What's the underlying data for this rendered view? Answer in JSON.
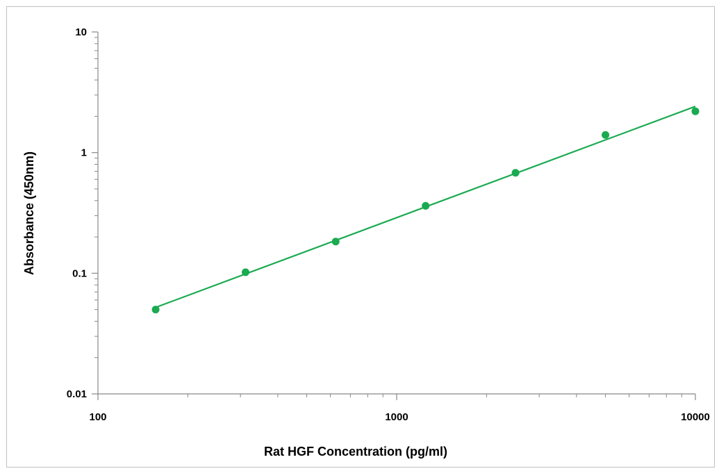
{
  "chart_data": {
    "type": "scatter",
    "title": "",
    "xlabel": "Rat HGF Concentration (pg/ml)",
    "ylabel": "Absorbance (450nm)",
    "x_scale": "log",
    "y_scale": "log",
    "xlim": [
      100,
      10000
    ],
    "ylim": [
      0.01,
      10
    ],
    "x_ticks": [
      100,
      1000,
      10000
    ],
    "x_tick_labels": [
      "100",
      "1000",
      "10000"
    ],
    "y_ticks": [
      0.01,
      0.1,
      1,
      10
    ],
    "y_tick_labels": [
      "0.01",
      "0.1",
      "1",
      "10"
    ],
    "grid": false,
    "legend": "none",
    "series": [
      {
        "x": [
          156,
          312,
          625,
          1250,
          2500,
          5000,
          10000
        ],
        "y": [
          0.05,
          0.102,
          0.183,
          0.362,
          0.68,
          1.4,
          2.2
        ],
        "color": "#1aaa50",
        "marker": "circle",
        "trendline": "power"
      }
    ]
  }
}
